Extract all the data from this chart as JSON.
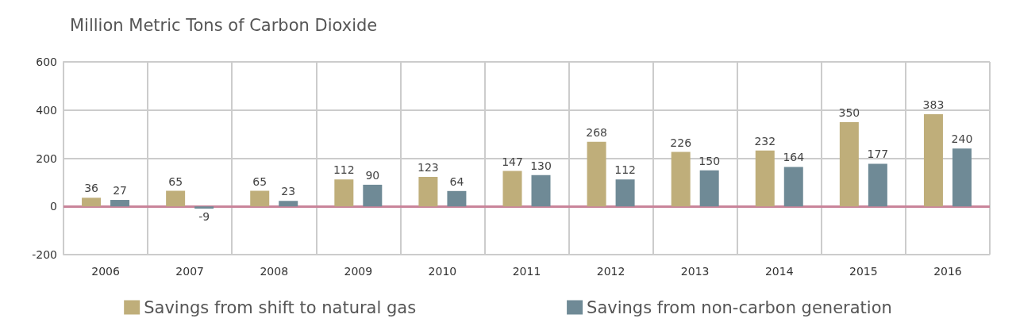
{
  "chart_data": {
    "type": "bar",
    "title": "Million Metric Tons of Carbon Dioxide",
    "categories": [
      "2006",
      "2007",
      "2008",
      "2009",
      "2010",
      "2011",
      "2012",
      "2013",
      "2014",
      "2015",
      "2016"
    ],
    "series": [
      {
        "name": "Savings from shift to natural gas",
        "color": "#bfae7a",
        "values": [
          36,
          65,
          65,
          112,
          123,
          147,
          268,
          226,
          232,
          350,
          383
        ]
      },
      {
        "name": "Savings from non-carbon generation",
        "color": "#6f8a96",
        "values": [
          27,
          -9,
          23,
          90,
          64,
          130,
          112,
          150,
          164,
          177,
          240
        ]
      }
    ],
    "ylim": [
      -200,
      600
    ],
    "yticks": [
      -200,
      0,
      200,
      400,
      600
    ],
    "grid": true,
    "legend": "bottom",
    "data_labels": true,
    "ref_lines": [
      {
        "axis": "y",
        "value": 0,
        "color": "#c9849a"
      }
    ]
  }
}
